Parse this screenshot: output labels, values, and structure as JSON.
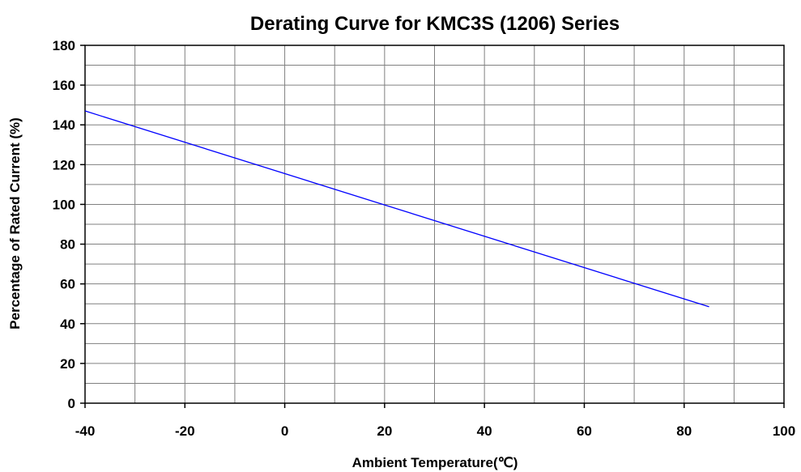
{
  "chart_data": {
    "type": "line",
    "title": "Derating Curve for KMC3S (1206) Series",
    "xlabel": "Ambient Temperature(℃)",
    "ylabel": "Percentage of Rated Current (%)",
    "xlim": [
      -40,
      100
    ],
    "ylim": [
      0,
      180
    ],
    "x_ticks": [
      "-40",
      "-20",
      "0",
      "20",
      "40",
      "60",
      "80",
      "100"
    ],
    "y_ticks": [
      "0",
      "20",
      "40",
      "60",
      "80",
      "100",
      "120",
      "140",
      "160",
      "180"
    ],
    "x_minor_step": 10,
    "y_minor_step": 10,
    "grid": true,
    "series": [
      {
        "color": "#0000ff",
        "x": [
          -40,
          85
        ],
        "y": [
          147,
          48.5
        ]
      }
    ]
  }
}
